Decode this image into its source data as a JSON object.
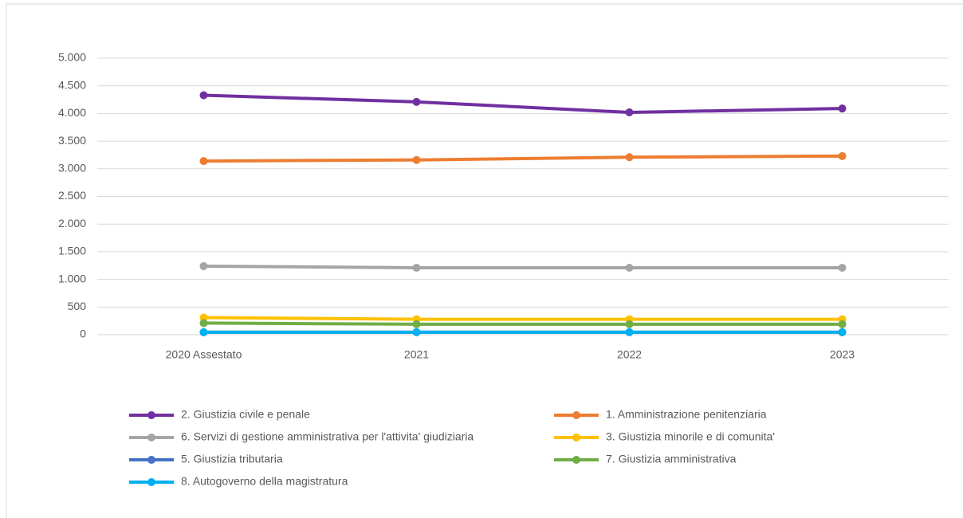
{
  "chart_data": {
    "type": "line",
    "categories": [
      "2020 Assestato",
      "2021",
      "2022",
      "2023"
    ],
    "series": [
      {
        "name": "2. Giustizia civile e penale",
        "color": "#7030a0",
        "values": [
          4330,
          4210,
          4020,
          4090
        ]
      },
      {
        "name": "1. Amministrazione penitenziaria",
        "color": "#ed7d31",
        "values": [
          3140,
          3160,
          3210,
          3230
        ]
      },
      {
        "name": "6. Servizi di gestione amministrativa per l'attivita' giudiziaria",
        "color": "#a5a5a5",
        "values": [
          1240,
          1210,
          1210,
          1210
        ]
      },
      {
        "name": "3. Giustizia minorile e di comunita'",
        "color": "#ffc000",
        "values": [
          310,
          280,
          280,
          280
        ]
      },
      {
        "name": "5. Giustizia tributaria",
        "color": "#4472c4",
        "values": [
          45,
          45,
          45,
          45
        ]
      },
      {
        "name": "7. Giustizia amministrativa",
        "color": "#70ad47",
        "values": [
          210,
          190,
          190,
          190
        ]
      },
      {
        "name": "8. Autogoverno della magistratura",
        "color": "#00b0f0",
        "values": [
          45,
          45,
          45,
          45
        ]
      }
    ],
    "ylim": [
      0,
      5000
    ],
    "yticks": [
      0,
      500,
      {
        "value": 1000,
        "label": "1.000"
      },
      {
        "value": 1500,
        "label": "1.500"
      },
      {
        "value": 2000,
        "label": "2.000"
      },
      {
        "value": 2500,
        "label": "2.500"
      },
      {
        "value": 3000,
        "label": "3.000"
      },
      {
        "value": 3500,
        "label": "3.500"
      },
      {
        "value": 4000,
        "label": "4.000"
      },
      {
        "value": 4500,
        "label": "4.500"
      },
      {
        "value": 5000,
        "label": "5.000"
      }
    ],
    "grid": true
  }
}
